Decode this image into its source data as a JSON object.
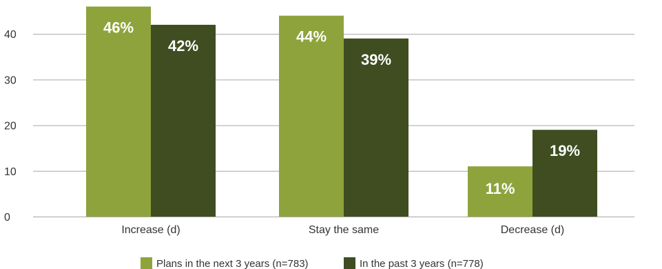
{
  "chart_data": {
    "type": "bar",
    "title": "",
    "xlabel": "",
    "ylabel": "",
    "ylim": [
      0,
      46
    ],
    "yticks": [
      0,
      10,
      20,
      30,
      40
    ],
    "grid": true,
    "legend_position": "bottom",
    "categories": [
      "Increase (d)",
      "Stay the same",
      "Decrease (d)"
    ],
    "series": [
      {
        "name": "Plans in the next 3 years (n=783)",
        "color": "#8fa33c",
        "values": [
          46,
          44,
          11
        ],
        "labels": [
          "46%",
          "44%",
          "11%"
        ]
      },
      {
        "name": "In the past 3 years (n=778)",
        "color": "#3f4d21",
        "values": [
          42,
          39,
          19
        ],
        "labels": [
          "42%",
          "39%",
          "19%"
        ]
      }
    ]
  }
}
